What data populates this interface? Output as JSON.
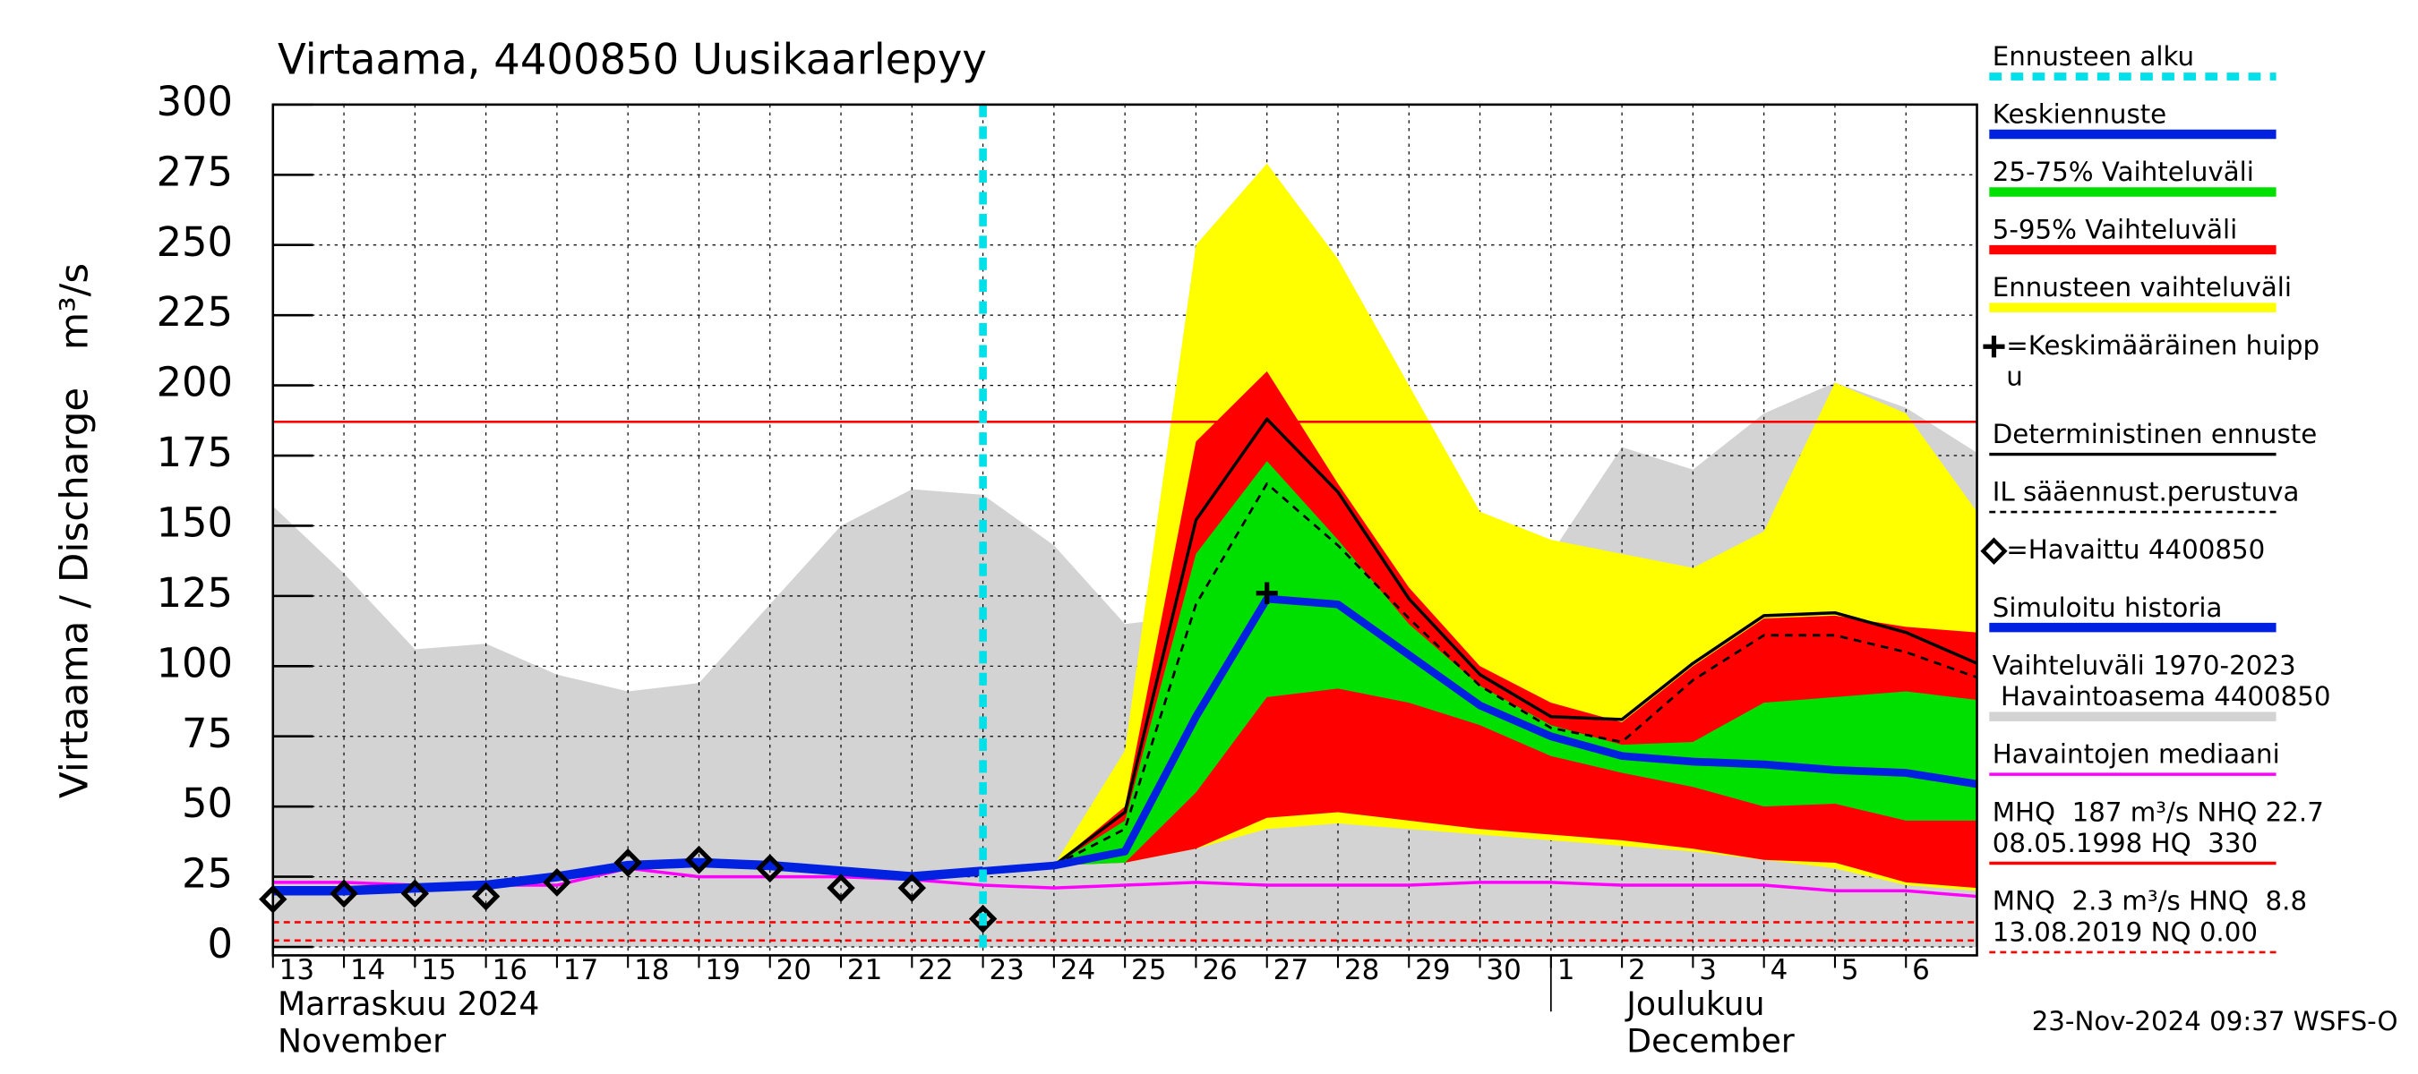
{
  "chart_data": {
    "type": "hydrograph",
    "title": "Virtaama, 4400850 Uusikaarlepyy",
    "y_label": "Virtaama / Discharge   m³/s",
    "month_labels": [
      {
        "x": "2024-11-13",
        "lines": [
          "Marraskuu 2024",
          "November"
        ]
      },
      {
        "x": "2024-12-02",
        "lines": [
          "Joulukuu",
          "December"
        ]
      }
    ],
    "month_separator": "2024-12-01",
    "footer": "23-Nov-2024 09:37 WSFS-O",
    "x": [
      "2024-11-13",
      "2024-11-14",
      "2024-11-15",
      "2024-11-16",
      "2024-11-17",
      "2024-11-18",
      "2024-11-19",
      "2024-11-20",
      "2024-11-21",
      "2024-11-22",
      "2024-11-23",
      "2024-11-24",
      "2024-11-25",
      "2024-11-26",
      "2024-11-27",
      "2024-11-28",
      "2024-11-29",
      "2024-11-30",
      "2024-12-01",
      "2024-12-02",
      "2024-12-03",
      "2024-12-04",
      "2024-12-05",
      "2024-12-06",
      "2024-12-07"
    ],
    "xticks": [
      {
        "value": "2024-11-13",
        "label": "13"
      },
      {
        "value": "2024-11-14",
        "label": "14"
      },
      {
        "value": "2024-11-15",
        "label": "15"
      },
      {
        "value": "2024-11-16",
        "label": "16"
      },
      {
        "value": "2024-11-17",
        "label": "17"
      },
      {
        "value": "2024-11-18",
        "label": "18"
      },
      {
        "value": "2024-11-19",
        "label": "19"
      },
      {
        "value": "2024-11-20",
        "label": "20"
      },
      {
        "value": "2024-11-21",
        "label": "21"
      },
      {
        "value": "2024-11-22",
        "label": "22"
      },
      {
        "value": "2024-11-23",
        "label": "23"
      },
      {
        "value": "2024-11-24",
        "label": "24"
      },
      {
        "value": "2024-11-25",
        "label": "25"
      },
      {
        "value": "2024-11-26",
        "label": "26"
      },
      {
        "value": "2024-11-27",
        "label": "27"
      },
      {
        "value": "2024-11-28",
        "label": "28"
      },
      {
        "value": "2024-11-29",
        "label": "29"
      },
      {
        "value": "2024-11-30",
        "label": "30"
      },
      {
        "value": "2024-12-01",
        "label": "1"
      },
      {
        "value": "2024-12-02",
        "label": "2"
      },
      {
        "value": "2024-12-03",
        "label": "3"
      },
      {
        "value": "2024-12-04",
        "label": "4"
      },
      {
        "value": "2024-12-05",
        "label": "5"
      },
      {
        "value": "2024-12-06",
        "label": "6"
      }
    ],
    "xlim": [
      "2024-11-13",
      "2024-12-07"
    ],
    "ylim": [
      -3,
      300
    ],
    "yticks": [
      0,
      25,
      50,
      75,
      100,
      125,
      150,
      175,
      200,
      225,
      250,
      275,
      300
    ],
    "grid": true,
    "forecast_start": {
      "x": "2024-11-23",
      "color": "#00e0e8"
    },
    "hlines": [
      {
        "value": 187,
        "color": "#ff0000",
        "style": "solid"
      },
      {
        "value": 8.8,
        "color": "#ff0000",
        "style": "dashed"
      },
      {
        "value": 2.3,
        "color": "#ff0000",
        "style": "dashed"
      }
    ],
    "series": [
      {
        "kind": "area",
        "color": "#d3d3d3",
        "values": [
          157,
          133,
          106,
          108,
          97,
          91,
          94,
          122,
          150,
          163,
          161,
          143,
          115,
          118,
          122,
          121,
          112,
          122,
          140,
          178,
          170,
          190,
          201,
          192,
          176
        ]
      },
      {
        "kind": "band",
        "color": "#ffff00",
        "upper": [
          null,
          null,
          null,
          null,
          null,
          null,
          null,
          null,
          null,
          null,
          null,
          29,
          70,
          250,
          279,
          245,
          200,
          155,
          145,
          140,
          135,
          148,
          201,
          190,
          155
        ],
        "lower": [
          null,
          null,
          null,
          null,
          null,
          null,
          null,
          null,
          null,
          null,
          null,
          29,
          30,
          35,
          42,
          44,
          42,
          40,
          38,
          36,
          34,
          31,
          28,
          22,
          20
        ]
      },
      {
        "kind": "band",
        "color": "#ff0000",
        "upper": [
          null,
          null,
          null,
          null,
          null,
          null,
          null,
          null,
          null,
          null,
          null,
          29,
          50,
          180,
          205,
          165,
          128,
          100,
          87,
          80,
          100,
          117,
          118,
          114,
          112
        ],
        "lower": [
          null,
          null,
          null,
          null,
          null,
          null,
          null,
          null,
          null,
          null,
          null,
          29,
          30,
          35,
          46,
          48,
          45,
          42,
          40,
          38,
          35,
          31,
          30,
          23,
          21
        ]
      },
      {
        "kind": "band",
        "color": "#00e000",
        "upper": [
          null,
          null,
          null,
          null,
          null,
          null,
          null,
          null,
          null,
          null,
          null,
          29,
          45,
          140,
          173,
          145,
          115,
          93,
          79,
          72,
          73,
          87,
          89,
          91,
          88
        ],
        "lower": [
          null,
          null,
          null,
          null,
          null,
          null,
          null,
          null,
          null,
          null,
          null,
          29,
          30,
          55,
          89,
          92,
          87,
          79,
          68,
          62,
          57,
          50,
          51,
          45,
          45
        ]
      },
      {
        "kind": "line",
        "color": "#ff00ff",
        "width": 2,
        "values": [
          23,
          23,
          22,
          22,
          22,
          28,
          25,
          25,
          25,
          24,
          22,
          21,
          22,
          23,
          22,
          22,
          22,
          23,
          23,
          22,
          22,
          22,
          20,
          20,
          18
        ]
      },
      {
        "kind": "line",
        "color": "#000000",
        "width": 2,
        "values": [
          null,
          null,
          null,
          null,
          null,
          null,
          null,
          null,
          null,
          null,
          27,
          29,
          48,
          152,
          188,
          162,
          124,
          97,
          82,
          81,
          101,
          118,
          119,
          112,
          101
        ]
      },
      {
        "kind": "line",
        "color": "#000000",
        "width": 1.6,
        "dash": true,
        "values": [
          null,
          null,
          null,
          null,
          null,
          null,
          null,
          null,
          null,
          null,
          null,
          29,
          42,
          122,
          165,
          143,
          117,
          93,
          78,
          73,
          95,
          111,
          111,
          105,
          96
        ]
      },
      {
        "kind": "line",
        "color": "#0022e0",
        "width": 6,
        "values": [
          20,
          20,
          21,
          22,
          25,
          29,
          30,
          29,
          27,
          25,
          27,
          null,
          null,
          null,
          null,
          null,
          null,
          null,
          null,
          null,
          null,
          null,
          null,
          null,
          null
        ]
      },
      {
        "kind": "line",
        "color": "#0022e0",
        "width": 5,
        "values": [
          null,
          null,
          null,
          null,
          null,
          null,
          null,
          null,
          null,
          null,
          27,
          29,
          34,
          82,
          124,
          122,
          104,
          86,
          75,
          68,
          66,
          65,
          63,
          62,
          58
        ]
      },
      {
        "kind": "markers",
        "color": "#000000",
        "values": [
          17,
          19,
          19,
          18,
          23,
          30,
          31,
          28,
          21,
          21,
          10,
          null,
          null,
          null,
          null,
          null,
          null,
          null,
          null,
          null,
          null,
          null,
          null,
          null,
          null
        ]
      }
    ],
    "peak": {
      "x": "2024-11-27",
      "value": 126
    },
    "legend": [
      {
        "label": [
          "Ennusteen alku"
        ],
        "color": "#00e0e8",
        "style": "dashed"
      },
      {
        "label": [
          "Keskiennuste"
        ],
        "color": "#0022e0",
        "style": "thick"
      },
      {
        "label": [
          "25-75% Vaihteluväli"
        ],
        "color": "#00e000",
        "style": "thick"
      },
      {
        "label": [
          "5-95% Vaihteluväli"
        ],
        "color": "#ff0000",
        "style": "thick"
      },
      {
        "label": [
          "Ennusteen vaihteluväli"
        ],
        "color": "#ffff00",
        "style": "thick"
      },
      {
        "label": [
          "=Keskimääräinen huipp",
          "u"
        ],
        "color": "#000000",
        "style": "plus"
      },
      {
        "label": [
          "Deterministinen ennuste"
        ],
        "color": "#000000",
        "style": "thin"
      },
      {
        "label": [
          "IL sääennust.perustuva"
        ],
        "color": "#000000",
        "style": "thin-dashed"
      },
      {
        "label": [
          "=Havaittu 4400850"
        ],
        "color": "#000000",
        "style": "diamond"
      },
      {
        "label": [
          "Simuloitu historia"
        ],
        "color": "#0022e0",
        "style": "thick"
      },
      {
        "label": [
          "Vaihteluväli 1970-2023",
          " Havaintoasema 4400850"
        ],
        "color": "#d3d3d3",
        "style": "thick"
      },
      {
        "label": [
          "Havaintojen mediaani"
        ],
        "color": "#ff00ff",
        "style": "thin"
      },
      {
        "label": [
          "MHQ  187 m³/s NHQ 22.7",
          "08.05.1998 HQ  330"
        ],
        "color": "#ff0000",
        "style": "thin"
      },
      {
        "label": [
          "MNQ  2.3 m³/s HNQ  8.8",
          "13.08.2019 NQ 0.00"
        ],
        "color": "#ff0000",
        "style": "thin-dashed"
      }
    ]
  }
}
